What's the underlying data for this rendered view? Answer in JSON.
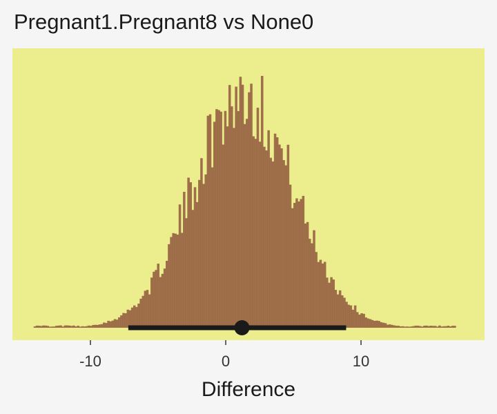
{
  "chart_data": {
    "type": "histogram",
    "title": "Pregnant1.Pregnant8 vs None0",
    "xlabel": "Difference",
    "ylabel": "",
    "xlim": [
      -15,
      18
    ],
    "x_ticks": [
      -10,
      0,
      10
    ],
    "x_tick_labels": [
      "-10",
      "0",
      "10"
    ],
    "grid": false,
    "legend": "none",
    "distribution": {
      "shape": "approximately normal",
      "center": 1.2,
      "sd": 3.7
    },
    "point_estimate": 1.2,
    "interval": [
      -7.2,
      8.9
    ],
    "colors": {
      "panel_background": "#ecee8d",
      "page_background": "#f5f5f5",
      "histogram_fill": "#9a6746",
      "interval_line": "#1a1a1a"
    }
  }
}
